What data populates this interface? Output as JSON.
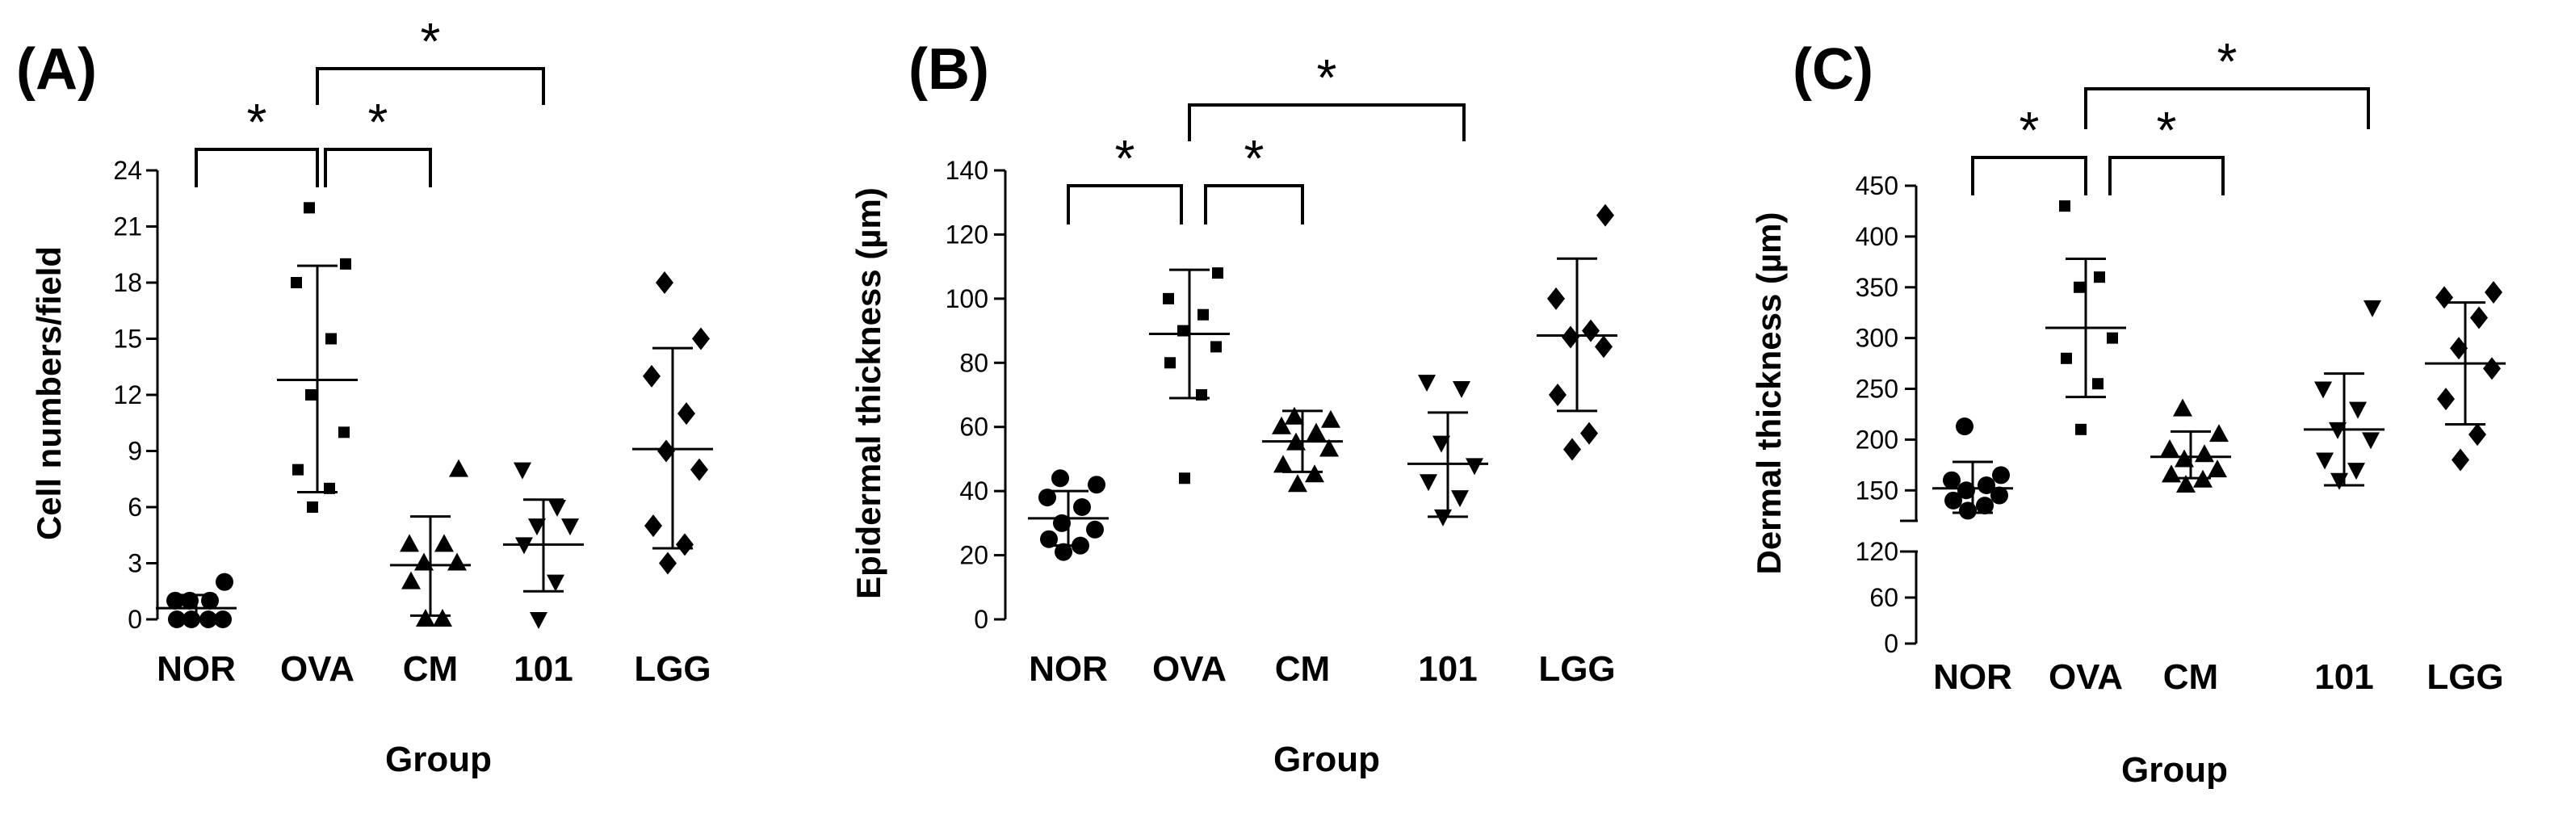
{
  "chart_data": [
    {
      "type": "scatter",
      "panel": "(A)",
      "ylabel": "Cell numbers/field",
      "xlabel": "Group",
      "ylim": [
        0,
        24
      ],
      "yticks": [
        0,
        3,
        6,
        9,
        12,
        15,
        18,
        21,
        24
      ],
      "categories": [
        "NOR",
        "OVA",
        "CM",
        "101",
        "LGG"
      ],
      "markers": [
        "circle",
        "square",
        "triangle-up",
        "triangle-down",
        "diamond"
      ],
      "points": [
        [
          0,
          0,
          0,
          0,
          1,
          1,
          1,
          2
        ],
        [
          6,
          7,
          8,
          10,
          12,
          15,
          18,
          19,
          22
        ],
        [
          0,
          0,
          2,
          3,
          3,
          4,
          4,
          8
        ],
        [
          0,
          2,
          4,
          5,
          5,
          6,
          8
        ],
        [
          3,
          4,
          5,
          8,
          9,
          11,
          13,
          15,
          18
        ]
      ],
      "mean": [
        0.6,
        12.8,
        2.9,
        4.0,
        9.1
      ],
      "sd_low": [
        0.0,
        6.8,
        0.2,
        1.5,
        3.8
      ],
      "sd_high": [
        1.3,
        18.9,
        5.5,
        6.4,
        14.5
      ],
      "significance": [
        {
          "from": "NOR",
          "to": "OVA",
          "label": "*"
        },
        {
          "from": "OVA",
          "to": "CM",
          "label": "*"
        },
        {
          "from": "OVA",
          "to": "101",
          "label": "*"
        }
      ]
    },
    {
      "type": "scatter",
      "panel": "(B)",
      "ylabel": "Epidermal thickness (µm)",
      "xlabel": "Group",
      "ylim": [
        0,
        140
      ],
      "yticks": [
        0,
        20,
        40,
        60,
        80,
        100,
        120,
        140
      ],
      "categories": [
        "NOR",
        "OVA",
        "CM",
        "101",
        "LGG"
      ],
      "markers": [
        "circle",
        "square",
        "triangle-up",
        "triangle-down",
        "diamond"
      ],
      "points": [
        [
          21,
          23,
          25,
          28,
          30,
          35,
          38,
          42,
          44
        ],
        [
          44,
          70,
          80,
          85,
          90,
          95,
          100,
          108
        ],
        [
          42,
          45,
          48,
          53,
          55,
          58,
          60,
          62,
          63
        ],
        [
          32,
          38,
          43,
          48,
          55,
          72,
          74
        ],
        [
          53,
          58,
          70,
          85,
          88,
          90,
          100,
          126
        ]
      ],
      "mean": [
        31.5,
        89.0,
        55.5,
        48.5,
        88.5
      ],
      "sd_low": [
        23.0,
        69.0,
        46.0,
        32.0,
        65.0
      ],
      "sd_high": [
        40.0,
        109.0,
        65.0,
        64.5,
        112.5
      ],
      "significance": [
        {
          "from": "NOR",
          "to": "OVA",
          "label": "*"
        },
        {
          "from": "OVA",
          "to": "CM",
          "label": "*"
        },
        {
          "from": "OVA",
          "to": "101",
          "label": "*"
        }
      ]
    },
    {
      "type": "scatter",
      "panel": "(C)",
      "ylabel": "Dermal thickness (µm)",
      "xlabel": "Group",
      "broken_axis": true,
      "ylim_lower": [
        0,
        120
      ],
      "ylim_upper": [
        120,
        450
      ],
      "yticks_lower": [
        0,
        60,
        120
      ],
      "yticks_upper": [
        150,
        200,
        250,
        300,
        350,
        400,
        450
      ],
      "categories": [
        "NOR",
        "OVA",
        "CM",
        "101",
        "LGG"
      ],
      "markers": [
        "circle",
        "square",
        "triangle-up",
        "triangle-down",
        "diamond"
      ],
      "points": [
        [
          130,
          135,
          140,
          145,
          150,
          155,
          160,
          165,
          213
        ],
        [
          210,
          255,
          280,
          300,
          350,
          360,
          430
        ],
        [
          155,
          160,
          165,
          170,
          180,
          185,
          190,
          205,
          230
        ],
        [
          160,
          170,
          180,
          200,
          210,
          230,
          250,
          330
        ],
        [
          180,
          205,
          240,
          270,
          290,
          320,
          340,
          345
        ]
      ],
      "mean": [
        152,
        310,
        183,
        210,
        275
      ],
      "sd_low": [
        128,
        242,
        162,
        155,
        215
      ],
      "sd_high": [
        178,
        378,
        208,
        265,
        335
      ],
      "significance": [
        {
          "from": "NOR",
          "to": "OVA",
          "label": "*"
        },
        {
          "from": "OVA",
          "to": "CM",
          "label": "*"
        },
        {
          "from": "OVA",
          "to": "101",
          "label": "*"
        }
      ]
    }
  ]
}
